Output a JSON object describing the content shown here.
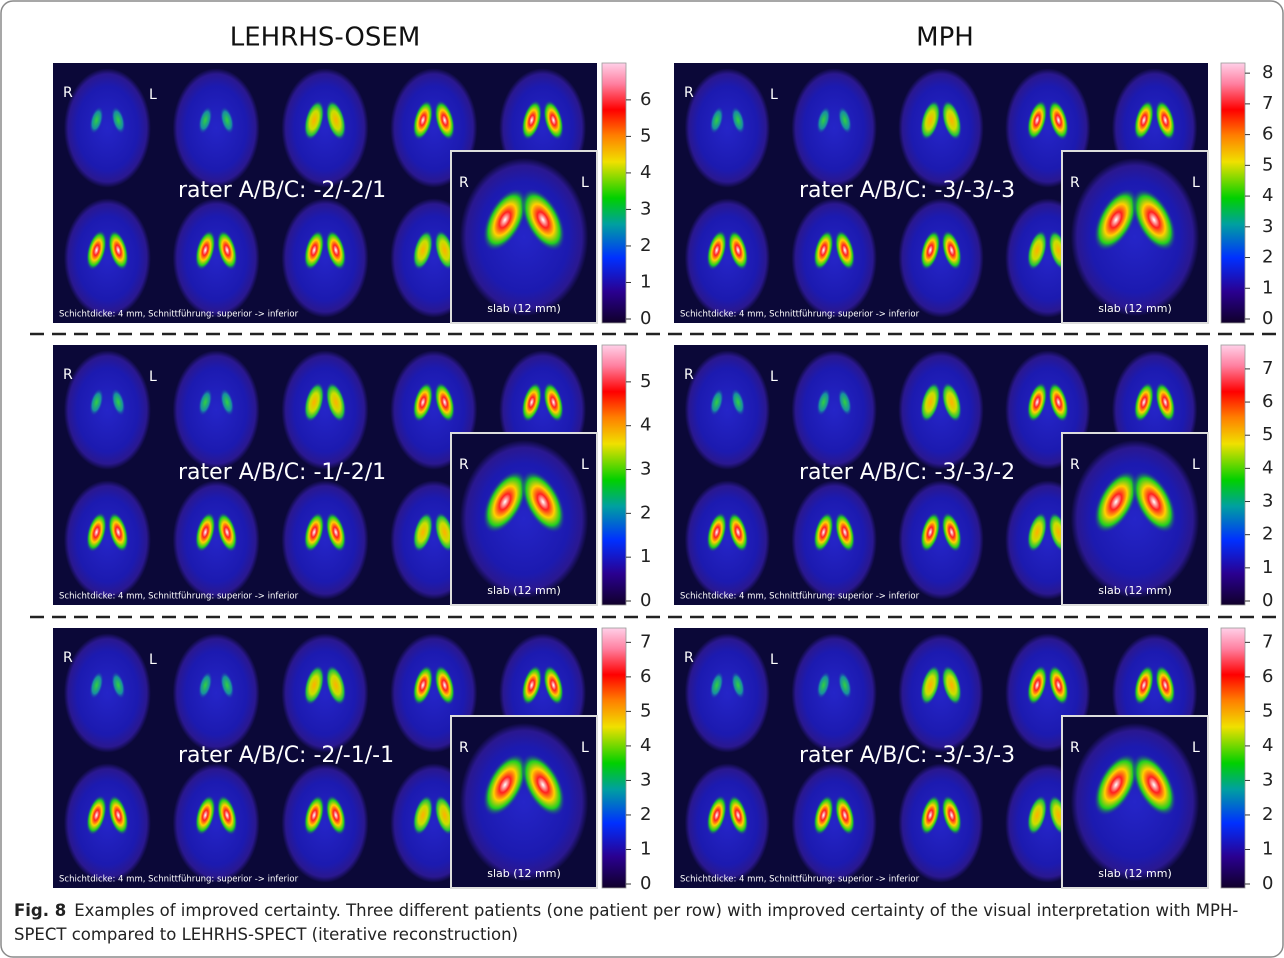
{
  "columns": [
    "LEHRHS-OSEM",
    "MPH"
  ],
  "rows": [
    {
      "panels": [
        {
          "rater": "rater A/B/C: -2/-2/1",
          "colorbar_ticks": [
            0,
            1,
            2,
            3,
            4,
            5,
            6
          ]
        },
        {
          "rater": "rater A/B/C: -3/-3/-3",
          "colorbar_ticks": [
            0,
            1,
            2,
            3,
            4,
            5,
            6,
            7,
            8
          ]
        }
      ]
    },
    {
      "panels": [
        {
          "rater": "rater A/B/C: -1/-2/1",
          "colorbar_ticks": [
            0,
            1,
            2,
            3,
            4,
            5
          ]
        },
        {
          "rater": "rater A/B/C: -3/-3/-2",
          "colorbar_ticks": [
            0,
            1,
            2,
            3,
            4,
            5,
            6,
            7
          ]
        }
      ]
    },
    {
      "panels": [
        {
          "rater": "rater A/B/C: -2/-1/-1",
          "colorbar_ticks": [
            0,
            1,
            2,
            3,
            4,
            5,
            6,
            7
          ]
        },
        {
          "rater": "rater A/B/C: -3/-3/-3",
          "colorbar_ticks": [
            0,
            1,
            2,
            3,
            4,
            5,
            6,
            7
          ]
        }
      ]
    }
  ],
  "labels": {
    "right": "R",
    "left": "L",
    "slice_note": "Schichtdicke: 4 mm, Schnittführung: superior -> inferior",
    "slab": "slab (12 mm)"
  },
  "caption": {
    "label": "Fig. 8",
    "text": "Examples of improved certainty. Three different patients (one patient per row) with improved certainty of the visual interpretation with MPH-SPECT compared to LEHRHS-SPECT (iterative reconstruction)"
  }
}
